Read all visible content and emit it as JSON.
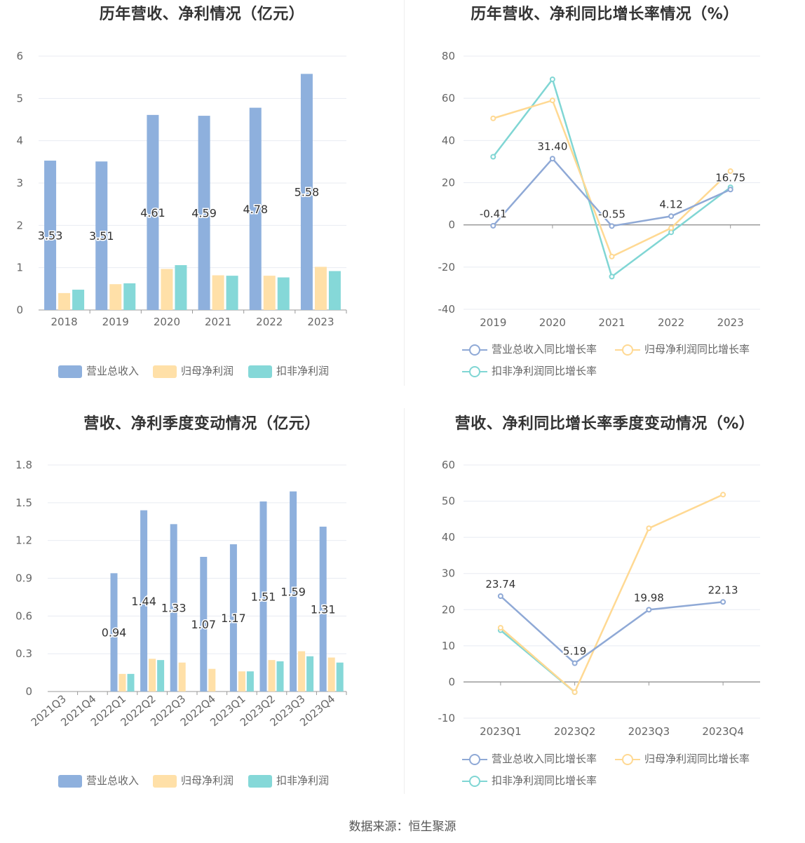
{
  "colors": {
    "revenue": "#8eb0dd",
    "net_profit": "#ffe0a8",
    "deducted_profit": "#85d8d8",
    "revenue_line": "#8fa9d6",
    "net_line": "#ffd993",
    "deducted_line": "#80d6d4"
  },
  "source": "数据来源：恒生聚源",
  "chart_data": [
    {
      "id": "annual_values",
      "type": "bar",
      "title": "历年营收、净利情况（亿元）",
      "categories": [
        "2018",
        "2019",
        "2020",
        "2021",
        "2022",
        "2023"
      ],
      "ylim": [
        0,
        6
      ],
      "yticks": [
        "0",
        "1",
        "2",
        "3",
        "4",
        "5",
        "6"
      ],
      "grid": true,
      "legend_position": "bottom",
      "series": [
        {
          "name": "营业总收入",
          "values": [
            3.53,
            3.51,
            4.61,
            4.59,
            4.78,
            5.58
          ],
          "labels": [
            "3.53",
            "3.51",
            "4.61",
            "4.59",
            "4.78",
            "5.58"
          ]
        },
        {
          "name": "归母净利润",
          "values": [
            0.4,
            0.61,
            0.97,
            0.82,
            0.81,
            1.02
          ]
        },
        {
          "name": "扣非净利润",
          "values": [
            0.48,
            0.63,
            1.06,
            0.81,
            0.77,
            0.92
          ]
        }
      ]
    },
    {
      "id": "annual_growth",
      "type": "line",
      "title": "历年营收、净利同比增长率情况（%）",
      "categories": [
        "2019",
        "2020",
        "2021",
        "2022",
        "2023"
      ],
      "ylim": [
        -40,
        80
      ],
      "yticks": [
        "-40",
        "-20",
        "0",
        "20",
        "40",
        "60",
        "80"
      ],
      "grid": true,
      "legend_position": "bottom",
      "series": [
        {
          "name": "营业总收入同比增长率",
          "values": [
            -0.41,
            31.4,
            -0.55,
            4.12,
            16.75
          ],
          "labels": [
            "-0.41",
            "31.40",
            "-0.55",
            "4.12",
            "16.75"
          ]
        },
        {
          "name": "归母净利润同比增长率",
          "values": [
            50.5,
            59.0,
            -15.0,
            -1.5,
            25.5
          ]
        },
        {
          "name": "扣非净利润同比增长率",
          "values": [
            32.3,
            69.0,
            -24.5,
            -3.5,
            17.8
          ]
        }
      ]
    },
    {
      "id": "quarterly_values",
      "type": "bar",
      "title": "营收、净利季度变动情况（亿元）",
      "categories": [
        "2021Q3",
        "2021Q4",
        "2022Q1",
        "2022Q2",
        "2022Q3",
        "2022Q4",
        "2023Q1",
        "2023Q2",
        "2023Q3",
        "2023Q4"
      ],
      "ylim": [
        0,
        1.8
      ],
      "yticks": [
        "0",
        "0.3",
        "0.6",
        "0.9",
        "1.2",
        "1.5",
        "1.8"
      ],
      "grid": true,
      "legend_position": "bottom",
      "series": [
        {
          "name": "营业总收入",
          "values": [
            null,
            null,
            0.94,
            1.44,
            1.33,
            1.07,
            1.17,
            1.51,
            1.59,
            1.31
          ],
          "labels": [
            "",
            "",
            "0.94",
            "1.44",
            "1.33",
            "1.07",
            "1.17",
            "1.51",
            "1.59",
            "1.31"
          ]
        },
        {
          "name": "归母净利润",
          "values": [
            null,
            null,
            0.14,
            0.26,
            0.23,
            0.18,
            0.16,
            0.25,
            0.32,
            0.27
          ]
        },
        {
          "name": "扣非净利润",
          "values": [
            null,
            null,
            0.14,
            0.25,
            null,
            null,
            0.16,
            0.24,
            0.28,
            0.23
          ]
        }
      ]
    },
    {
      "id": "quarterly_growth",
      "type": "line",
      "title": "营收、净利同比增长率季度变动情况（%）",
      "categories": [
        "2023Q1",
        "2023Q2",
        "2023Q3",
        "2023Q4"
      ],
      "ylim": [
        -10,
        60
      ],
      "yticks": [
        "-10",
        "0",
        "10",
        "20",
        "30",
        "40",
        "50",
        "60"
      ],
      "grid": true,
      "legend_position": "bottom",
      "series": [
        {
          "name": "营业总收入同比增长率",
          "values": [
            23.74,
            5.19,
            19.98,
            22.13
          ],
          "labels": [
            "23.74",
            "5.19",
            "19.98",
            "22.13"
          ]
        },
        {
          "name": "归母净利润同比增长率",
          "values": [
            15.0,
            -2.8,
            42.5,
            51.8
          ]
        },
        {
          "name": "扣非净利润同比增长率",
          "values": [
            14.3,
            -2.8,
            null,
            null
          ]
        }
      ]
    }
  ]
}
